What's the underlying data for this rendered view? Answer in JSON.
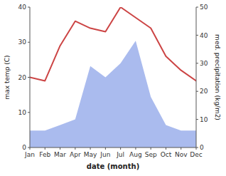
{
  "chart_data": {
    "type": "line",
    "xlabel": "date (month)",
    "ylabel": "max temp (C)",
    "y2label": "med. precipitation (kg/m2)",
    "categories": [
      "Jan",
      "Feb",
      "Mar",
      "Apr",
      "May",
      "Jun",
      "Jul",
      "Aug",
      "Sep",
      "Oct",
      "Nov",
      "Dec"
    ],
    "series": [
      {
        "type": "area",
        "axis": "y2",
        "color": "#aabbee",
        "values": [
          6,
          6,
          8,
          10,
          29,
          25,
          30,
          38,
          18,
          8,
          6,
          6
        ]
      },
      {
        "type": "line",
        "color": "#cc4444",
        "values": [
          20,
          19,
          29,
          36,
          34,
          33,
          40,
          37,
          34,
          26,
          22,
          19
        ]
      }
    ],
    "ylim": [
      0,
      40
    ],
    "yticks": [
      0,
      10,
      20,
      30,
      40
    ],
    "y2lim": [
      0,
      50
    ],
    "y2ticks": [
      0,
      10,
      20,
      30,
      40,
      50
    ],
    "grid": false
  }
}
